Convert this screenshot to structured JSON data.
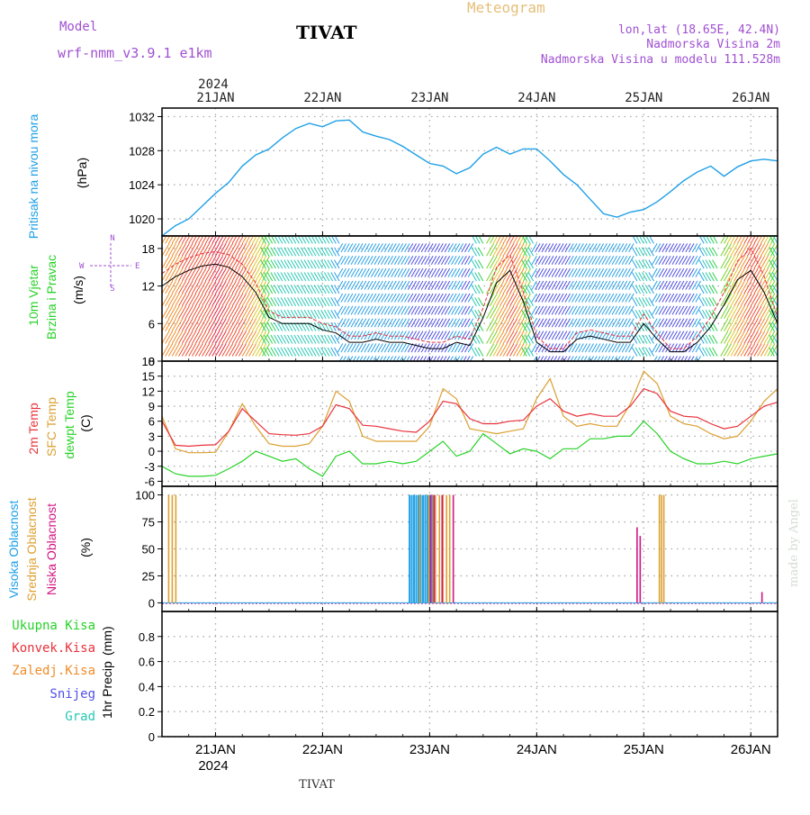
{
  "header": {
    "model_label": "Model",
    "model_name": "wrf-nmm_v3.9.1  e1km",
    "station": "TIVAT",
    "title": "Meteogram",
    "lonlat": "lon,lat (18.65E, 42.4N)",
    "altitude": "Nadmorska Visina 2m",
    "model_altitude": "Nadmorska Visina u modelu 111.528m"
  },
  "footer": {
    "station": "TIVAT",
    "credit": "made by Angel"
  },
  "time_axis": {
    "year": "2024",
    "ticks": [
      "21JAN",
      "22JAN",
      "23JAN",
      "24JAN",
      "25JAN",
      "26JAN"
    ],
    "start_hour": 0,
    "end_hour": 138
  },
  "colors": {
    "pressure": "#1ea0e6",
    "temp2m": "#e8323c",
    "sfc": "#dca032",
    "dewpt": "#28d228",
    "high_cloud": "#1ea0e6",
    "mid_cloud": "#dca032",
    "low_cloud": "#d21482",
    "precip_total": "#28d228",
    "precip_conv": "#e8323c",
    "precip_frozen": "#f08c28",
    "snow": "#5050e6",
    "hail": "#28c8b4",
    "wind_speed": "#000000",
    "wind_gust": "#e8323c",
    "grid": "#aaaaaa"
  },
  "chart_data": [
    {
      "type": "line",
      "id": "pressure",
      "ylabel": "Pritisak na nivou mora",
      "unit": "(hPa)",
      "ylim": [
        1018,
        1033
      ],
      "yticks": [
        1020,
        1024,
        1028,
        1032
      ],
      "grid": true,
      "series": [
        {
          "x": [
            0,
            3,
            6,
            9,
            12,
            15,
            18,
            21,
            24,
            27,
            30,
            33,
            36,
            39,
            42,
            45,
            48,
            51,
            54,
            57,
            60,
            63,
            66,
            69,
            72,
            75,
            78,
            81,
            84,
            87,
            90,
            93,
            96,
            99,
            102,
            105,
            108,
            111,
            114,
            117,
            120,
            123,
            126,
            129,
            132,
            135,
            138
          ],
          "y": [
            1018.0,
            1019.2,
            1020.0,
            1021.5,
            1023.0,
            1024.3,
            1026.2,
            1027.5,
            1028.2,
            1029.5,
            1030.6,
            1031.2,
            1030.8,
            1031.5,
            1031.6,
            1030.2,
            1029.7,
            1029.3,
            1028.5,
            1027.5,
            1026.5,
            1026.2,
            1025.3,
            1026.0,
            1027.6,
            1028.4,
            1027.6,
            1028.2,
            1028.2,
            1026.8,
            1025.2,
            1024.0,
            1022.3,
            1020.6,
            1020.2,
            1020.8,
            1021.1,
            1022.0,
            1023.2,
            1024.5,
            1025.5,
            1026.2,
            1025.0,
            1026.1,
            1026.8,
            1027.0,
            1026.8
          ]
        }
      ]
    },
    {
      "type": "line",
      "id": "wind",
      "ylabel": "10m Vjetar",
      "ylabel2": "Brzina i Pravac",
      "unit": "(m/s)",
      "ylim": [
        0,
        20
      ],
      "yticks": [
        0,
        6,
        12,
        18
      ],
      "grid": true,
      "compass": {
        "n": "N",
        "s": "S",
        "e": "E",
        "w": "W"
      },
      "series": [
        {
          "x": [
            0,
            3,
            6,
            9,
            12,
            15,
            18,
            21,
            24,
            27,
            30,
            33,
            36,
            39,
            42,
            45,
            48,
            51,
            54,
            57,
            60,
            63,
            66,
            69,
            72,
            75,
            78,
            81,
            84,
            87,
            90,
            93,
            96,
            99,
            102,
            105,
            108,
            111,
            114,
            117,
            120,
            123,
            126,
            129,
            132,
            135,
            138
          ],
          "y": [
            12,
            13.5,
            14.5,
            15.2,
            15.5,
            15,
            13.5,
            11,
            7,
            6,
            6,
            6,
            5,
            4.5,
            3,
            3,
            3.5,
            3,
            3,
            2.5,
            2,
            2,
            3,
            2.5,
            7,
            12.5,
            14.5,
            9.5,
            3,
            1.5,
            1.5,
            3.5,
            4,
            3.5,
            3,
            3,
            6,
            3.5,
            1.5,
            1.5,
            3,
            5.5,
            9,
            13,
            14.5,
            11,
            6
          ]
        },
        {
          "x": [
            0,
            3,
            6,
            9,
            12,
            15,
            18,
            21,
            24,
            27,
            30,
            33,
            36,
            39,
            42,
            45,
            48,
            51,
            54,
            57,
            60,
            63,
            66,
            69,
            72,
            75,
            78,
            81,
            84,
            87,
            90,
            93,
            96,
            99,
            102,
            105,
            108,
            111,
            114,
            117,
            120,
            123,
            126,
            129,
            132,
            135,
            138
          ],
          "y": [
            14,
            15.5,
            16.5,
            17.2,
            17.5,
            17,
            15.5,
            12.5,
            8,
            7,
            7,
            7,
            6,
            5.5,
            4,
            4,
            4.5,
            4,
            4,
            3.5,
            3,
            3,
            4,
            3.5,
            8.5,
            15,
            17,
            11,
            4,
            2,
            2,
            4.5,
            5,
            4.5,
            4,
            4,
            7.5,
            4.5,
            2,
            2,
            4,
            7,
            11,
            16,
            18,
            13.5,
            7
          ]
        }
      ]
    },
    {
      "type": "line",
      "id": "temperature",
      "ylabel": "2m Temp",
      "ylabel2": "SFC Temp",
      "ylabel3": "dewpt Temp",
      "unit": "(C)",
      "ylim": [
        -7,
        18
      ],
      "yticks": [
        -6,
        -3,
        0,
        3,
        6,
        9,
        12,
        15,
        18
      ],
      "grid": true,
      "series": [
        {
          "name": "2m Temp",
          "x": [
            0,
            3,
            6,
            9,
            12,
            15,
            18,
            21,
            24,
            27,
            30,
            33,
            36,
            39,
            42,
            45,
            48,
            51,
            54,
            57,
            60,
            63,
            66,
            69,
            72,
            75,
            78,
            81,
            84,
            87,
            90,
            93,
            96,
            99,
            102,
            105,
            108,
            111,
            114,
            117,
            120,
            123,
            126,
            129,
            132,
            135,
            138
          ],
          "y": [
            6,
            1.2,
            1.0,
            1.2,
            1.3,
            4.0,
            8.5,
            6.0,
            3.5,
            3.3,
            3.2,
            3.5,
            5.0,
            9.3,
            8.5,
            5.2,
            5.0,
            4.5,
            4.0,
            3.8,
            6.0,
            10.0,
            9.5,
            6.5,
            5.5,
            5.5,
            6.0,
            6.2,
            9.0,
            10.5,
            8.0,
            7.0,
            7.5,
            7.0,
            7.0,
            9.0,
            12.5,
            11.5,
            8.0,
            7.0,
            6.8,
            5.5,
            4.5,
            5.0,
            7.0,
            9.0,
            9.8
          ]
        },
        {
          "name": "SFC Temp",
          "x": [
            0,
            3,
            6,
            9,
            12,
            15,
            18,
            21,
            24,
            27,
            30,
            33,
            36,
            39,
            42,
            45,
            48,
            51,
            54,
            57,
            60,
            63,
            66,
            69,
            72,
            75,
            78,
            81,
            84,
            87,
            90,
            93,
            96,
            99,
            102,
            105,
            108,
            111,
            114,
            117,
            120,
            123,
            126,
            129,
            132,
            135,
            138
          ],
          "y": [
            7,
            0.5,
            -0.3,
            -0.3,
            -0.2,
            4.0,
            9.5,
            5.0,
            1.5,
            1.0,
            1.0,
            1.5,
            5.0,
            12.0,
            10.0,
            3.0,
            2.0,
            2.0,
            2.0,
            2.0,
            5.0,
            12.5,
            10.5,
            4.5,
            4.0,
            3.5,
            4.0,
            4.5,
            10.5,
            14.5,
            7.0,
            5.0,
            5.5,
            5.0,
            5.0,
            9.5,
            16.0,
            13.5,
            7.0,
            5.5,
            5.0,
            3.5,
            2.5,
            3.0,
            6.0,
            10.0,
            12.5
          ]
        },
        {
          "name": "dewpt Temp",
          "x": [
            0,
            3,
            6,
            9,
            12,
            15,
            18,
            21,
            24,
            27,
            30,
            33,
            36,
            39,
            42,
            45,
            48,
            51,
            54,
            57,
            60,
            63,
            66,
            69,
            72,
            75,
            78,
            81,
            84,
            87,
            90,
            93,
            96,
            99,
            102,
            105,
            108,
            111,
            114,
            117,
            120,
            123,
            126,
            129,
            132,
            135,
            138
          ],
          "y": [
            -3,
            -4.5,
            -5.0,
            -5.0,
            -4.8,
            -3.5,
            -2.0,
            0.0,
            -1.0,
            -2.0,
            -1.5,
            -3.5,
            -5.0,
            -1.0,
            0.0,
            -2.5,
            -2.5,
            -2.0,
            -2.5,
            -2.0,
            0.0,
            2.0,
            -1.0,
            0.0,
            3.5,
            1.5,
            -0.5,
            0.5,
            0.0,
            -1.5,
            0.5,
            0.5,
            2.5,
            2.5,
            3.0,
            3.0,
            6.0,
            3.5,
            0.0,
            -1.5,
            -2.5,
            -2.5,
            -2.0,
            -2.5,
            -1.5,
            -1.0,
            -0.5
          ]
        }
      ]
    },
    {
      "type": "bar",
      "id": "clouds",
      "ylabel": "Visoka Oblacnost",
      "ylabel2": "Srednja Oblacnost",
      "ylabel3": "Niska Oblacnost",
      "unit": "(%)",
      "ylim": [
        -8,
        108
      ],
      "yticks": [
        0,
        25,
        50,
        75,
        100
      ],
      "grid": true,
      "series": [
        {
          "name": "Visoka Oblacnost",
          "x": [
            55.5,
            56.0,
            56.5,
            57.0,
            57.5,
            58.0,
            58.5,
            59.0,
            59.5,
            60.0,
            60.5
          ],
          "y": [
            100,
            100,
            100,
            100,
            100,
            100,
            100,
            100,
            100,
            100,
            100
          ]
        },
        {
          "name": "Srednja Oblacnost",
          "x": [
            1.5,
            2.3,
            3.1,
            57.8,
            59.8,
            60.8,
            61.3,
            62.2,
            63.0,
            63.8,
            64.5,
            111.5,
            112.0,
            112.5
          ],
          "y": [
            100,
            100,
            100,
            100,
            100,
            100,
            100,
            100,
            100,
            100,
            100,
            100,
            100,
            100
          ]
        },
        {
          "name": "Niska Oblacnost",
          "x": [
            60.2,
            61.0,
            62.8,
            65.3,
            106.5,
            107.2,
            134.5
          ],
          "y": [
            100,
            100,
            100,
            100,
            70,
            62,
            10
          ]
        }
      ]
    },
    {
      "type": "bar",
      "id": "precip",
      "ylabel": "1hr Precip",
      "unit": "(mm)",
      "ylim": [
        0,
        1.0
      ],
      "yticks": [
        "0",
        "0.2",
        "0.4",
        "0.6",
        "0.8"
      ],
      "grid": true,
      "legend": [
        "Ukupna Kisa",
        "Konvek.Kisa",
        "Zaledj.Kisa",
        "Snijeg",
        "Grad"
      ],
      "series": []
    }
  ]
}
